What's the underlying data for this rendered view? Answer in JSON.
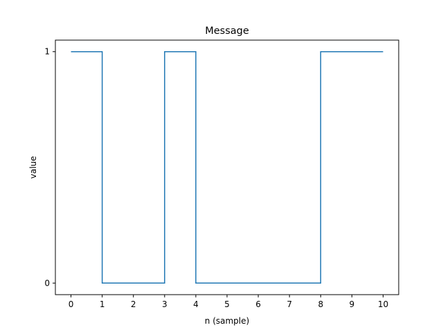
{
  "chart_data": {
    "type": "line",
    "drawstyle": "steps-post",
    "title": "Message",
    "xlabel": "n (sample)",
    "ylabel": "value",
    "x": [
      0,
      1,
      2,
      3,
      4,
      5,
      6,
      7,
      8,
      9,
      10
    ],
    "series": [
      {
        "values": [
          1,
          0,
          0,
          1,
          0,
          0,
          0,
          0,
          1,
          1,
          1
        ],
        "color": "#1f77b4"
      }
    ],
    "xticks": [
      0,
      1,
      2,
      3,
      4,
      5,
      6,
      7,
      8,
      9,
      10
    ],
    "yticks": [
      0,
      1
    ],
    "xlim": [
      -0.5,
      10.5
    ],
    "ylim": [
      -0.05,
      1.05
    ],
    "grid": false,
    "legend": "none"
  }
}
